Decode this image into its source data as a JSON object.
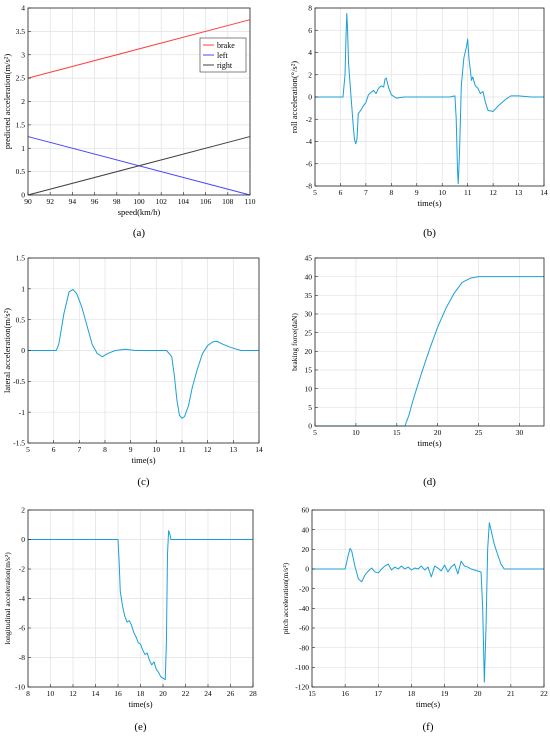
{
  "chart_data": [
    {
      "id": "a",
      "type": "line",
      "caption": "(a)",
      "xlabel": "speed(km/h)",
      "ylabel": "predicted acceleration(m/s²)",
      "xlim": [
        90,
        110
      ],
      "ylim": [
        0,
        4
      ],
      "xticks": [
        90,
        92,
        94,
        96,
        98,
        100,
        102,
        104,
        106,
        108,
        110
      ],
      "yticks": [
        0,
        0.5,
        1,
        1.5,
        2,
        2.5,
        3,
        3.5,
        4
      ],
      "grid": true,
      "legend": "top-right",
      "series": [
        {
          "name": "brake",
          "color": "#ff4040",
          "x": [
            90,
            110
          ],
          "y": [
            2.5,
            3.75
          ]
        },
        {
          "name": "left",
          "color": "#4444ff",
          "x": [
            90,
            110
          ],
          "y": [
            1.25,
            0
          ]
        },
        {
          "name": "right",
          "color": "#404040",
          "x": [
            90,
            110
          ],
          "y": [
            0,
            1.25
          ]
        }
      ]
    },
    {
      "id": "b",
      "type": "line",
      "caption": "(b)",
      "xlabel": "time(s)",
      "ylabel": "roll acceleration(°/s²)",
      "xlim": [
        5,
        14
      ],
      "ylim": [
        -8,
        8
      ],
      "xticks": [
        5,
        6,
        7,
        8,
        9,
        10,
        11,
        12,
        13,
        14
      ],
      "yticks": [
        -8,
        -6,
        -4,
        -2,
        0,
        2,
        4,
        6,
        8
      ],
      "grid": true,
      "series": [
        {
          "color": "#1aa0d8",
          "x": [
            5,
            6.1,
            6.18,
            6.22,
            6.25,
            6.28,
            6.32,
            6.4,
            6.5,
            6.55,
            6.6,
            6.65,
            6.7,
            6.8,
            6.9,
            7.0,
            7.1,
            7.2,
            7.3,
            7.4,
            7.5,
            7.6,
            7.7,
            7.75,
            7.8,
            7.9,
            8.0,
            8.2,
            8.5,
            9.0,
            10.0,
            10.3,
            10.5,
            10.55,
            10.6,
            10.63,
            10.68,
            10.75,
            10.85,
            10.95,
            11.0,
            11.05,
            11.1,
            11.15,
            11.2,
            11.3,
            11.4,
            11.5,
            11.6,
            11.7,
            11.8,
            12.0,
            12.2,
            12.5,
            12.7,
            13.0,
            13.5,
            14.0
          ],
          "y": [
            0,
            0,
            2.0,
            5.5,
            7.5,
            6.0,
            3.0,
            0.5,
            -2.5,
            -3.8,
            -4.2,
            -3.8,
            -1.5,
            -1.2,
            -0.8,
            -0.5,
            0.2,
            0.4,
            0.6,
            0.3,
            0.8,
            1.0,
            0.9,
            1.6,
            1.7,
            0.8,
            0.2,
            -0.1,
            0.0,
            0.0,
            0.0,
            0.0,
            0.1,
            -2.0,
            -6.5,
            -7.8,
            -5.0,
            1.0,
            3.5,
            4.5,
            5.2,
            3.5,
            2.5,
            1.5,
            1.8,
            1.0,
            0.8,
            0.3,
            0.5,
            -0.5,
            -1.2,
            -1.3,
            -0.8,
            -0.2,
            0.1,
            0.1,
            0.0,
            0.0
          ]
        }
      ]
    },
    {
      "id": "c",
      "type": "line",
      "caption": "(c)",
      "xlabel": "time(s)",
      "ylabel": "lateral acceleration(m/s²)",
      "xlim": [
        5,
        14
      ],
      "ylim": [
        -1.5,
        1.5
      ],
      "xticks": [
        5,
        6,
        7,
        8,
        9,
        10,
        11,
        12,
        13,
        14
      ],
      "yticks": [
        -1.5,
        -1,
        -0.5,
        0,
        0.5,
        1,
        1.5
      ],
      "grid": true,
      "series": [
        {
          "color": "#1aa0d8",
          "x": [
            5,
            6.1,
            6.2,
            6.4,
            6.6,
            6.75,
            6.9,
            7.1,
            7.3,
            7.5,
            7.7,
            7.9,
            8.1,
            8.4,
            8.8,
            9.2,
            9.6,
            10.0,
            10.4,
            10.6,
            10.7,
            10.8,
            10.9,
            11.0,
            11.1,
            11.25,
            11.4,
            11.6,
            11.8,
            12.0,
            12.2,
            12.35,
            12.6,
            12.9,
            13.3,
            13.7,
            14.0
          ],
          "y": [
            0,
            0,
            0.1,
            0.6,
            0.95,
            0.99,
            0.92,
            0.7,
            0.4,
            0.1,
            -0.05,
            -0.1,
            -0.05,
            0.0,
            0.02,
            0.0,
            0.0,
            0.0,
            0.0,
            -0.1,
            -0.4,
            -0.8,
            -1.05,
            -1.1,
            -1.07,
            -0.9,
            -0.6,
            -0.3,
            -0.05,
            0.08,
            0.14,
            0.15,
            0.1,
            0.05,
            0.0,
            0.0,
            0.0
          ]
        }
      ]
    },
    {
      "id": "d",
      "type": "line",
      "caption": "(d)",
      "xlabel": "time(s)",
      "ylabel": "braking force(daN)",
      "xlim": [
        5,
        33
      ],
      "ylim": [
        0,
        45
      ],
      "xticks": [
        5,
        10,
        15,
        20,
        25,
        30
      ],
      "yticks": [
        0,
        5,
        10,
        15,
        20,
        25,
        30,
        35,
        40,
        45
      ],
      "grid": true,
      "series": [
        {
          "color": "#1aa0d8",
          "x": [
            5,
            16,
            16.5,
            17,
            18,
            19,
            20,
            21,
            22,
            23,
            24,
            25,
            28,
            33
          ],
          "y": [
            0,
            0,
            3,
            7,
            14,
            20.5,
            26.5,
            31.5,
            35.5,
            38.5,
            39.6,
            40,
            40,
            40
          ]
        }
      ]
    },
    {
      "id": "e",
      "type": "line",
      "caption": "(e)",
      "xlabel": "time(s)",
      "ylabel": "longitudinal acceleration(m/s²)",
      "xlim": [
        8,
        28
      ],
      "ylim": [
        -10,
        2
      ],
      "xticks": [
        8,
        10,
        12,
        14,
        16,
        18,
        20,
        22,
        24,
        26,
        28
      ],
      "yticks": [
        -10,
        -8,
        -6,
        -4,
        -2,
        0,
        2
      ],
      "grid": true,
      "series": [
        {
          "color": "#1aa0d8",
          "x": [
            8,
            16,
            16.1,
            16.2,
            16.4,
            16.6,
            16.8,
            17.0,
            17.2,
            17.4,
            17.6,
            17.8,
            18.0,
            18.2,
            18.4,
            18.6,
            18.8,
            19.0,
            19.2,
            19.4,
            19.6,
            19.8,
            20.0,
            20.2,
            20.3,
            20.4,
            20.5,
            20.6,
            20.7,
            21.0,
            22.0,
            28.0
          ],
          "y": [
            0,
            0,
            -1.5,
            -3.5,
            -4.5,
            -5.2,
            -5.6,
            -5.5,
            -5.8,
            -6.3,
            -6.6,
            -7.0,
            -7.1,
            -7.5,
            -7.8,
            -7.7,
            -8.2,
            -8.5,
            -8.3,
            -8.8,
            -9.0,
            -9.3,
            -9.4,
            -9.5,
            -7.0,
            -1.0,
            0.6,
            0.4,
            0.0,
            0.0,
            0.0,
            0.0
          ]
        }
      ]
    },
    {
      "id": "f",
      "type": "line",
      "caption": "(f)",
      "xlabel": "time(s)",
      "ylabel": "pitch acceleration(m/s²)",
      "xlim": [
        15,
        22
      ],
      "ylim": [
        -120,
        60
      ],
      "xticks": [
        15,
        16,
        17,
        18,
        19,
        20,
        21,
        22
      ],
      "yticks": [
        -120,
        -100,
        -80,
        -60,
        -40,
        -20,
        0,
        20,
        40,
        60
      ],
      "grid": true,
      "series": [
        {
          "color": "#1aa0d8",
          "x": [
            15,
            16.0,
            16.1,
            16.15,
            16.2,
            16.3,
            16.4,
            16.5,
            16.6,
            16.7,
            16.8,
            16.9,
            17.0,
            17.1,
            17.2,
            17.3,
            17.4,
            17.5,
            17.6,
            17.7,
            17.8,
            17.9,
            18.0,
            18.1,
            18.2,
            18.3,
            18.4,
            18.5,
            18.6,
            18.7,
            18.8,
            18.9,
            19.0,
            19.1,
            19.2,
            19.3,
            19.4,
            19.5,
            19.6,
            19.7,
            19.8,
            19.9,
            20.0,
            20.1,
            20.15,
            20.2,
            20.25,
            20.3,
            20.35,
            20.4,
            20.5,
            20.6,
            20.7,
            20.8,
            21.0,
            21.5,
            22.0
          ],
          "y": [
            0,
            0,
            15,
            21,
            18,
            2,
            -10,
            -13,
            -6,
            -2,
            1,
            -3,
            -4,
            0,
            3,
            5,
            -1,
            2,
            0,
            3,
            0,
            2,
            -1,
            1,
            0,
            3,
            -1,
            2,
            -8,
            3,
            1,
            -2,
            4,
            -3,
            2,
            5,
            -5,
            8,
            3,
            2,
            0,
            -1,
            -2,
            -3,
            -40,
            -115,
            -60,
            20,
            47,
            40,
            25,
            15,
            5,
            0,
            0,
            0,
            0
          ]
        }
      ]
    }
  ]
}
